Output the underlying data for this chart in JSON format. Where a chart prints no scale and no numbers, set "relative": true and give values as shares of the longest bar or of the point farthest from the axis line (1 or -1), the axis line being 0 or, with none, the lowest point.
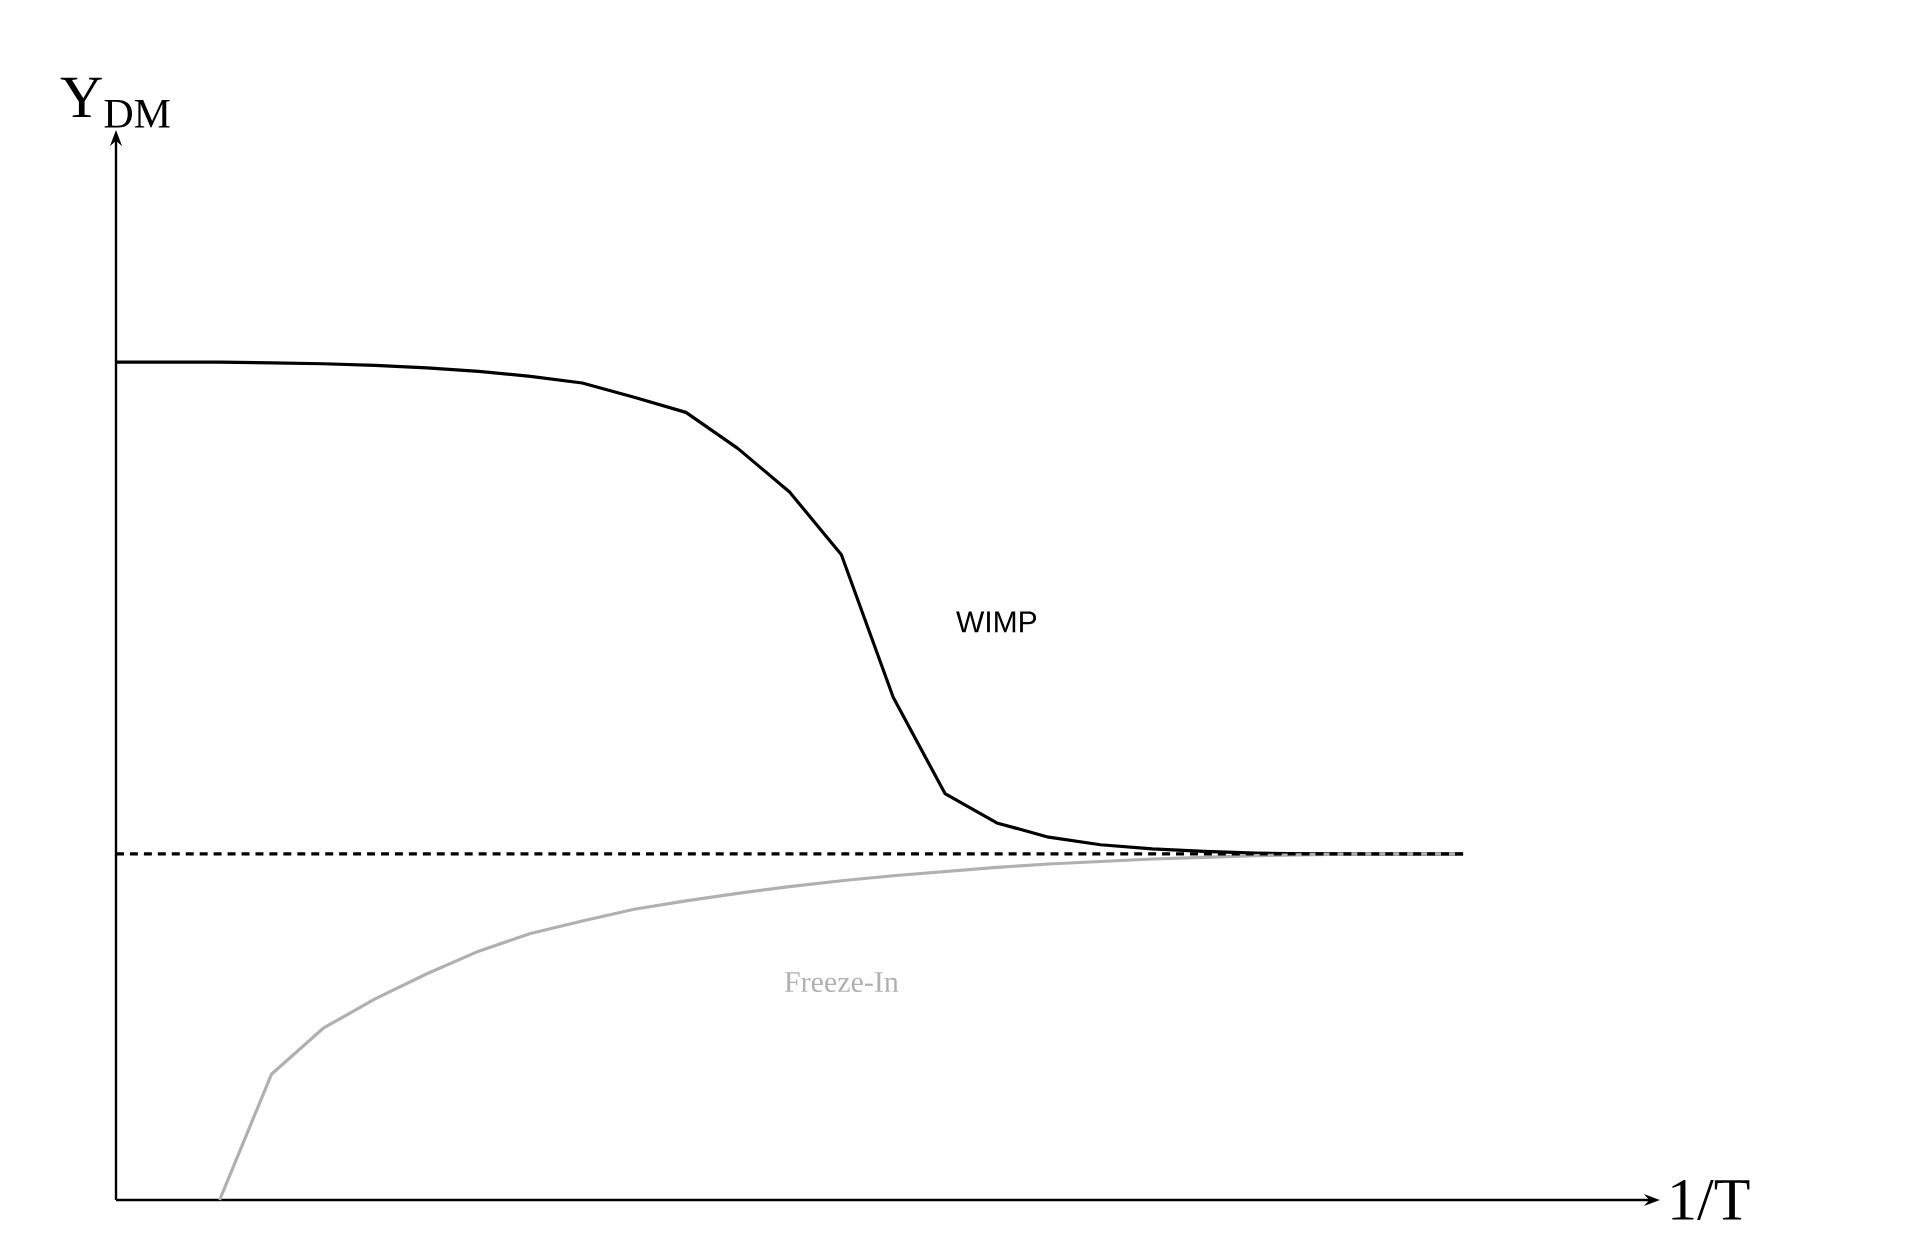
{
  "chart_data": {
    "type": "line",
    "relative": true,
    "xlabel": "1/T",
    "ylabel": "Y$_{DM}$",
    "categories": [
      null,
      null,
      null,
      null,
      null,
      null,
      null,
      null,
      null,
      null,
      null,
      null,
      null,
      null,
      null,
      null,
      null,
      null,
      null,
      null,
      null,
      null,
      null,
      null,
      null,
      null,
      null
    ],
    "series": [
      {
        "name": "WIMP",
        "color": "#000000",
        "line_style": "solid",
        "values": [
          1,
          1,
          1,
          0.999,
          0.998,
          0.996,
          0.993,
          0.989,
          0.983,
          0.975,
          0.958,
          0.94,
          0.897,
          0.845,
          0.77,
          0.6,
          0.485,
          0.45,
          0.433,
          0.424,
          0.419,
          0.416,
          0.414,
          0.413,
          0.413,
          0.413,
          0.413
        ]
      },
      {
        "name": "Freeze-In",
        "color": "#b0b0b0",
        "line_style": "solid",
        "values": [
          null,
          null,
          0,
          0.15,
          0.205,
          0.24,
          0.27,
          0.297,
          0.318,
          0.333,
          0.347,
          0.357,
          0.366,
          0.374,
          0.381,
          0.387,
          0.392,
          0.397,
          0.401,
          0.404,
          0.407,
          0.409,
          0.411,
          0.412,
          0.413,
          0.413,
          0.413
        ]
      },
      {
        "color": "#000000",
        "line_style": "dashed",
        "values": [
          0.413,
          0.413,
          0.413,
          0.413,
          0.413,
          0.413,
          0.413,
          0.413,
          0.413,
          0.413,
          0.413,
          0.413,
          0.413,
          0.413,
          0.413,
          0.413,
          0.413,
          0.413,
          0.413,
          0.413,
          0.413,
          0.413,
          0.413,
          0.413,
          0.413,
          0.413,
          0.413
        ]
      }
    ]
  }
}
